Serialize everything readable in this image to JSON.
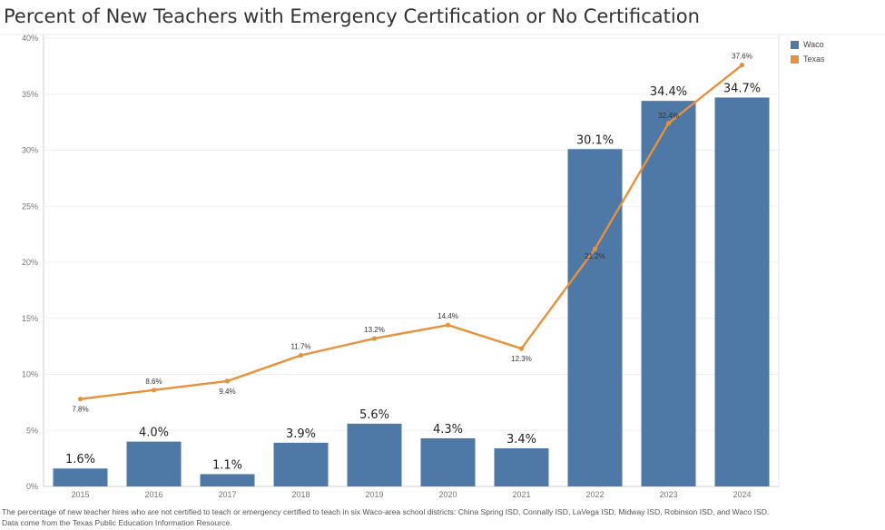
{
  "title": "Percent of New Teachers with Emergency Certification or No Certification",
  "legend": [
    {
      "name": "Waco",
      "color": "#4e79a7"
    },
    {
      "name": "Texas",
      "color": "#e8913a"
    }
  ],
  "footnote": "The percentage of new teacher hires who are not certified to teach or emergency certified to teach in six Waco-area school districts: China Spring ISD, Connally ISD, LaVega ISD, Midway ISD, Robinson ISD, and Waco ISD. Data come from the Texas Public Education Information Resource.",
  "chart_data": {
    "type": "bar",
    "title": "Percent of New Teachers with Emergency Certification or No Certification",
    "categories": [
      "2015",
      "2016",
      "2017",
      "2018",
      "2019",
      "2020",
      "2021",
      "2022",
      "2023",
      "2024"
    ],
    "series": [
      {
        "name": "Waco",
        "type": "bar",
        "color": "#4e79a7",
        "values": [
          1.6,
          4.0,
          1.1,
          3.9,
          5.6,
          4.3,
          3.4,
          30.1,
          34.4,
          34.7
        ],
        "labels": [
          "1.6%",
          "4.0%",
          "1.1%",
          "3.9%",
          "5.6%",
          "4.3%",
          "3.4%",
          "30.1%",
          "34.4%",
          "34.7%"
        ]
      },
      {
        "name": "Texas",
        "type": "line",
        "color": "#e8913a",
        "values": [
          7.8,
          8.6,
          9.4,
          11.7,
          13.2,
          14.4,
          12.3,
          21.2,
          32.4,
          37.6
        ],
        "labels": [
          "7.8%",
          "8.6%",
          "9.4%",
          "11.7%",
          "13.2%",
          "14.4%",
          "12.3%",
          "21.2%",
          "32.4%",
          "37.6%"
        ]
      }
    ],
    "y_ticks": [
      "0%",
      "5%",
      "10%",
      "15%",
      "20%",
      "25%",
      "30%",
      "35%",
      "40%"
    ],
    "y_tick_values": [
      0,
      5,
      10,
      15,
      20,
      25,
      30,
      35,
      40
    ],
    "ylim": [
      0,
      40
    ],
    "xlabel": "",
    "ylabel": "",
    "grid": true,
    "legend_position": "top-right"
  }
}
